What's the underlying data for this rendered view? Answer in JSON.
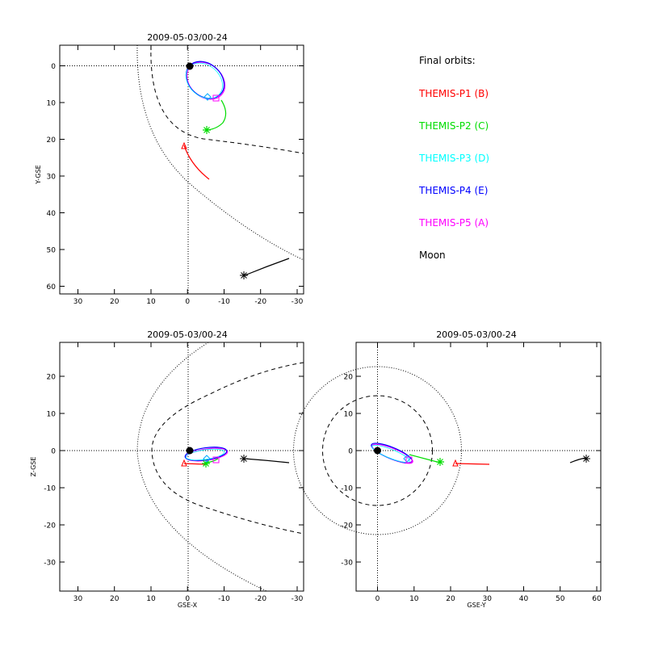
{
  "panels": {
    "xy": {
      "title": "2009-05-03/00-24",
      "ylabel": "Y-GSE",
      "xticks": [
        "30",
        "20",
        "10",
        "0",
        "-10",
        "-20",
        "-30"
      ],
      "yticks": [
        "0",
        "10",
        "20",
        "30",
        "40",
        "50",
        "60"
      ]
    },
    "xz": {
      "title": "2009-05-03/00-24",
      "xlabel": "GSE-X",
      "ylabel": "Z-GSE",
      "xticks": [
        "30",
        "20",
        "10",
        "0",
        "-10",
        "-20",
        "-30"
      ],
      "yticks": [
        "20",
        "10",
        "0",
        "-10",
        "-20",
        "-30"
      ]
    },
    "yz": {
      "title": "2009-05-03/00-24",
      "xlabel": "GSE-Y",
      "xticks": [
        "0",
        "10",
        "20",
        "30",
        "40",
        "50",
        "60"
      ],
      "yticks": [
        "20",
        "10",
        "0",
        "-10",
        "-20",
        "-30"
      ]
    }
  },
  "legend": {
    "title": "Final orbits:",
    "items": [
      {
        "label": "THEMIS-P1 (B)",
        "color": "#ff0000"
      },
      {
        "label": "THEMIS-P2 (C)",
        "color": "#00dd00"
      },
      {
        "label": "THEMIS-P3 (D)",
        "color": "#00ffff"
      },
      {
        "label": "THEMIS-P4 (E)",
        "color": "#0000ff"
      },
      {
        "label": "THEMIS-P5 (A)",
        "color": "#ff00ff"
      },
      {
        "label": "Moon",
        "color": "#000000"
      }
    ]
  }
}
